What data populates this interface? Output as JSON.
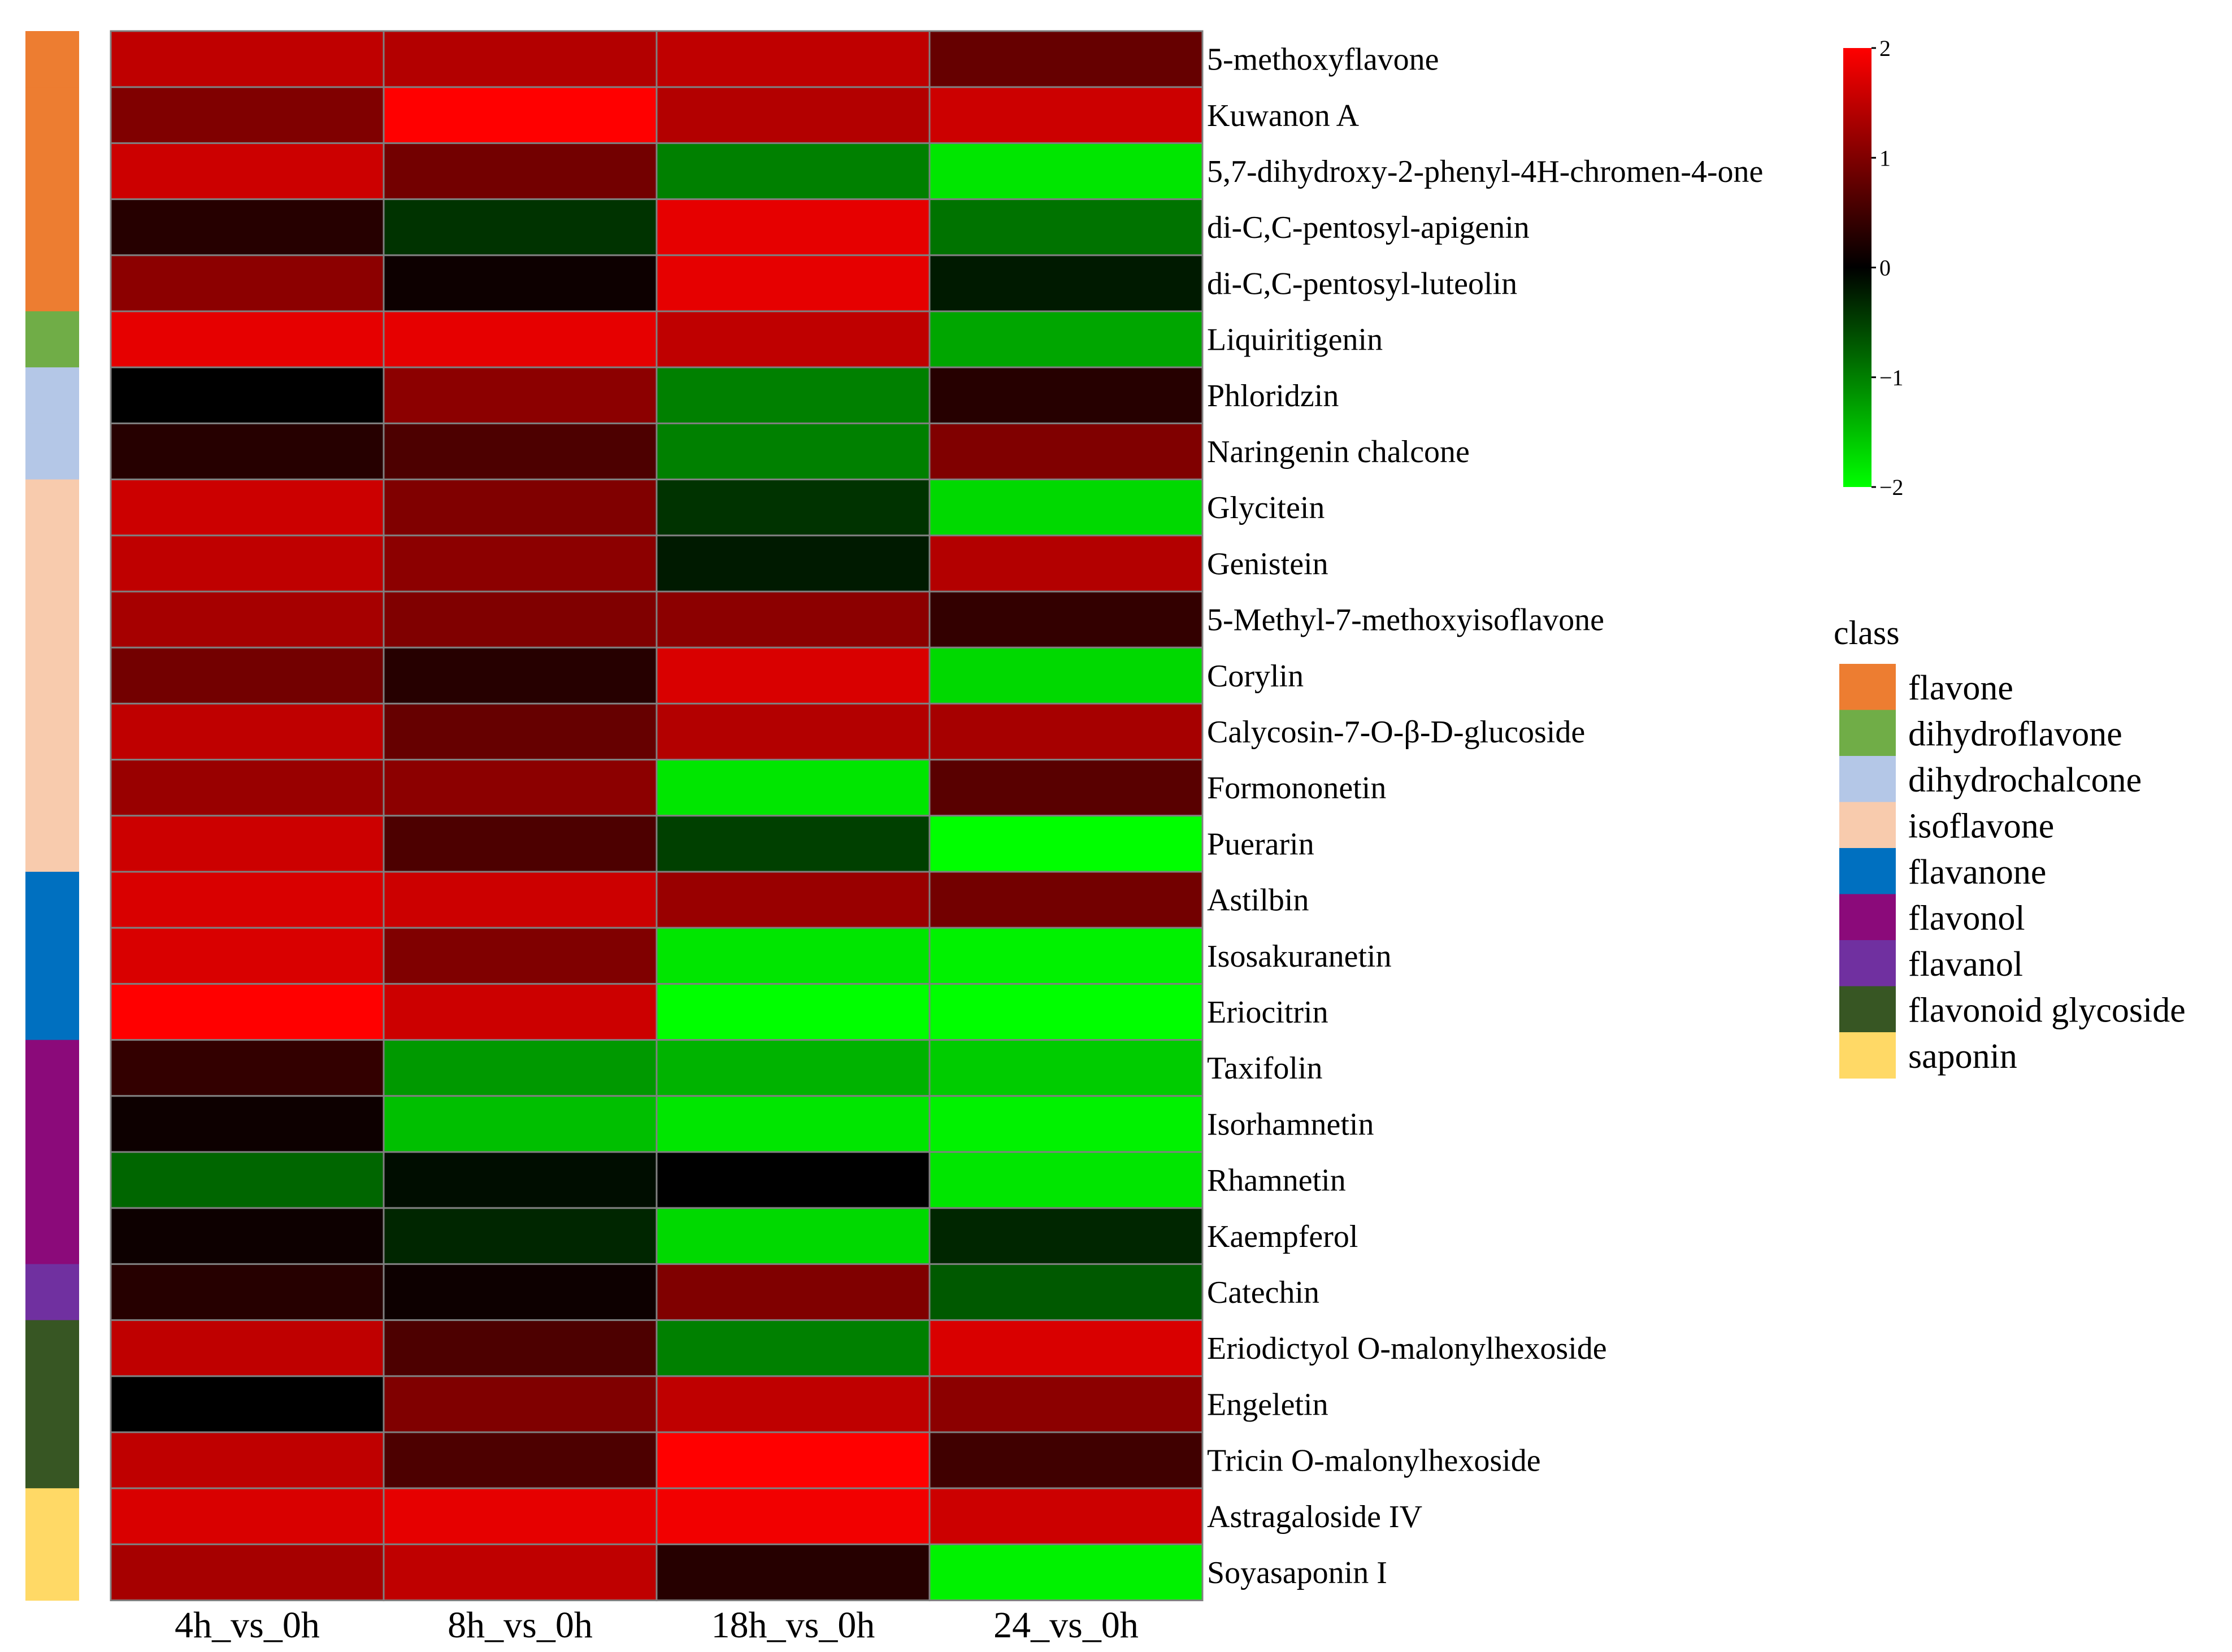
{
  "chart_data": {
    "type": "heatmap",
    "title": "",
    "xlabel": "",
    "ylabel": "",
    "columns": [
      "4h_vs_0h",
      "8h_vs_0h",
      "18h_vs_0h",
      "24_vs_0h"
    ],
    "rows": [
      {
        "name": "5-methoxyflavone",
        "class": "flavone",
        "values": [
          1.5,
          1.4,
          1.5,
          0.8
        ]
      },
      {
        "name": "Kuwanon A",
        "class": "flavone",
        "values": [
          1.0,
          2.0,
          1.4,
          1.6
        ]
      },
      {
        "name": "5,7-dihydroxy-2-phenyl-4H-chromen-4-one",
        "class": "flavone",
        "values": [
          1.6,
          0.9,
          -1.0,
          -1.8
        ]
      },
      {
        "name": "di-C,C-pentosyl-apigenin",
        "class": "flavone",
        "values": [
          0.3,
          -0.4,
          1.8,
          -0.9
        ]
      },
      {
        "name": "di-C,C-pentosyl-luteolin",
        "class": "flavone",
        "values": [
          1.1,
          0.1,
          1.8,
          -0.2
        ]
      },
      {
        "name": "Liquiritigenin",
        "class": "dihydroflavone",
        "values": [
          1.8,
          1.8,
          1.5,
          -1.3
        ]
      },
      {
        "name": "Phloridzin",
        "class": "dihydrochalcone",
        "values": [
          0.0,
          1.1,
          -1.0,
          0.3
        ]
      },
      {
        "name": "Naringenin chalcone",
        "class": "dihydrochalcone",
        "values": [
          0.3,
          0.6,
          -1.0,
          1.0
        ]
      },
      {
        "name": "Glycitein",
        "class": "isoflavone",
        "values": [
          1.6,
          1.0,
          -0.4,
          -1.7
        ]
      },
      {
        "name": "Genistein",
        "class": "isoflavone",
        "values": [
          1.5,
          1.1,
          -0.2,
          1.4
        ]
      },
      {
        "name": "5-Methyl-7-methoxyisoflavone",
        "class": "isoflavone",
        "values": [
          1.3,
          1.0,
          1.1,
          0.4
        ]
      },
      {
        "name": "Corylin",
        "class": "isoflavone",
        "values": [
          0.9,
          0.3,
          1.7,
          -1.7
        ]
      },
      {
        "name": "Calycosin-7-O-β-D-glucoside",
        "class": "isoflavone",
        "values": [
          1.5,
          0.8,
          1.4,
          1.3
        ]
      },
      {
        "name": "Formononetin",
        "class": "isoflavone",
        "values": [
          1.2,
          1.1,
          -1.8,
          0.7
        ]
      },
      {
        "name": "Puerarin",
        "class": "isoflavone",
        "values": [
          1.6,
          0.6,
          -0.5,
          -2.0
        ]
      },
      {
        "name": "Astilbin",
        "class": "flavanone",
        "values": [
          1.7,
          1.6,
          1.2,
          0.9
        ]
      },
      {
        "name": "Isosakuranetin",
        "class": "flavanone",
        "values": [
          1.7,
          1.0,
          -1.8,
          -1.9
        ]
      },
      {
        "name": "Eriocitrin",
        "class": "flavanone",
        "values": [
          2.0,
          1.6,
          -2.0,
          -2.0
        ]
      },
      {
        "name": "Taxifolin",
        "class": "flavonol",
        "values": [
          0.4,
          -1.2,
          -1.4,
          -1.6
        ]
      },
      {
        "name": "Isorhamnetin",
        "class": "flavonol",
        "values": [
          0.1,
          -1.5,
          -1.8,
          -1.9
        ]
      },
      {
        "name": "Rhamnetin",
        "class": "flavonol",
        "values": [
          -0.8,
          -0.1,
          0.0,
          -1.8
        ]
      },
      {
        "name": "Kaempferol",
        "class": "flavonol",
        "values": [
          0.1,
          -0.3,
          -1.7,
          -0.3
        ]
      },
      {
        "name": "Catechin",
        "class": "flavanol",
        "values": [
          0.3,
          0.1,
          1.0,
          -0.7
        ]
      },
      {
        "name": "Eriodictyol O-malonylhexoside",
        "class": "flavonoid glycoside",
        "values": [
          1.5,
          0.6,
          -1.0,
          1.7
        ]
      },
      {
        "name": "Engeletin",
        "class": "flavonoid glycoside",
        "values": [
          0.0,
          1.0,
          1.5,
          1.1
        ]
      },
      {
        "name": "Tricin O-malonylhexoside",
        "class": "flavonoid glycoside",
        "values": [
          1.5,
          0.6,
          2.0,
          0.5
        ]
      },
      {
        "name": "Astragaloside IV",
        "class": "saponin",
        "values": [
          1.7,
          1.8,
          1.9,
          1.6
        ]
      },
      {
        "name": "Soyasaponin I",
        "class": "saponin",
        "values": [
          1.3,
          1.5,
          0.3,
          -1.9
        ]
      }
    ],
    "color_scale": {
      "min": -2,
      "max": 2,
      "low_color": "#00ff00",
      "mid_color": "#000000",
      "high_color": "#ff0000",
      "ticks": [
        {
          "value": 2,
          "label": "2"
        },
        {
          "value": 1,
          "label": "1"
        },
        {
          "value": 0,
          "label": "0"
        },
        {
          "value": -1,
          "label": "−1"
        },
        {
          "value": -2,
          "label": "−2"
        }
      ]
    },
    "class_legend": {
      "title": "class",
      "items": [
        {
          "name": "flavone",
          "color": "#ed7d31"
        },
        {
          "name": "dihydroflavone",
          "color": "#70ad47"
        },
        {
          "name": "dihydrochalcone",
          "color": "#b4c7e7"
        },
        {
          "name": "isoflavone",
          "color": "#f8cbad"
        },
        {
          "name": "flavanone",
          "color": "#0070c0"
        },
        {
          "name": "flavonol",
          "color": "#8b0a7a"
        },
        {
          "name": "flavanol",
          "color": "#7030a0"
        },
        {
          "name": "flavonoid glycoside",
          "color": "#375623"
        },
        {
          "name": "saponin",
          "color": "#ffd966"
        }
      ]
    },
    "cell_border_color": "#808080"
  }
}
